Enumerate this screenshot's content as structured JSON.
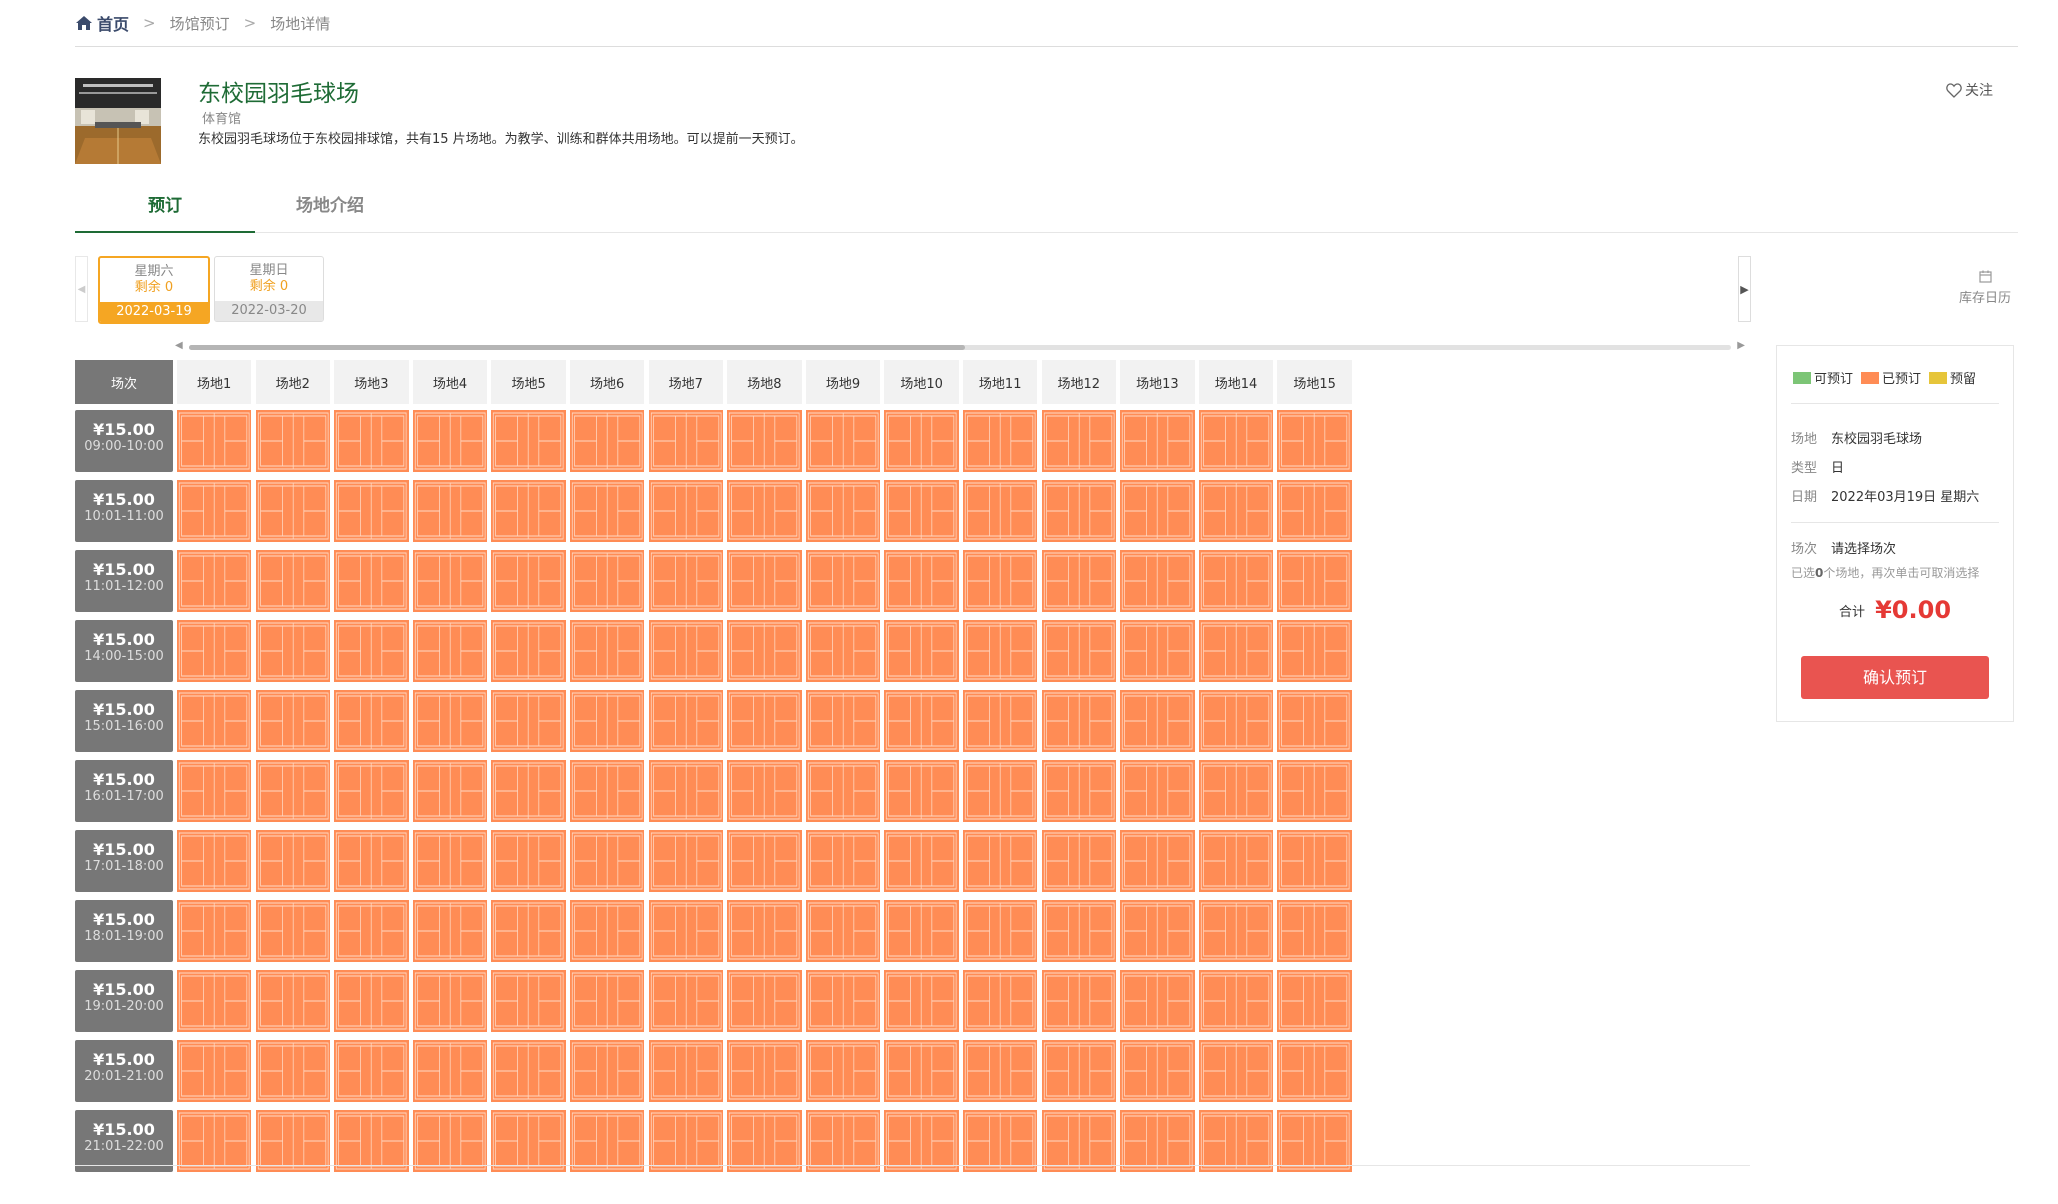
{
  "breadcrumb": {
    "home": "首页",
    "items": [
      "场馆预订",
      "场地详情"
    ]
  },
  "venue": {
    "name": "东校园羽毛球场",
    "category": "体育馆",
    "description": "东校园羽毛球场位于东校园排球馆，共有15 片场地。为教学、训练和群体共用场地。可以提前一天预订。",
    "follow": "关注"
  },
  "tabs": [
    {
      "label": "预订",
      "active": true
    },
    {
      "label": "场地介绍",
      "active": false
    }
  ],
  "dates": [
    {
      "weekday": "星期六",
      "remaining": "剩余 0",
      "date": "2022-03-19",
      "active": true
    },
    {
      "weekday": "星期日",
      "remaining": "剩余 0",
      "date": "2022-03-20",
      "active": false
    }
  ],
  "calendar_label": "库存日历",
  "grid": {
    "corner": "场次",
    "courts": [
      "场地1",
      "场地2",
      "场地3",
      "场地4",
      "场地5",
      "场地6",
      "场地7",
      "场地8",
      "场地9",
      "场地10",
      "场地11",
      "场地12",
      "场地13",
      "场地14",
      "场地15"
    ],
    "slots": [
      {
        "price": "¥15.00",
        "time": "09:00-10:00"
      },
      {
        "price": "¥15.00",
        "time": "10:01-11:00"
      },
      {
        "price": "¥15.00",
        "time": "11:01-12:00"
      },
      {
        "price": "¥15.00",
        "time": "14:00-15:00"
      },
      {
        "price": "¥15.00",
        "time": "15:01-16:00"
      },
      {
        "price": "¥15.00",
        "time": "16:01-17:00"
      },
      {
        "price": "¥15.00",
        "time": "17:01-18:00"
      },
      {
        "price": "¥15.00",
        "time": "18:01-19:00"
      },
      {
        "price": "¥15.00",
        "time": "19:01-20:00"
      },
      {
        "price": "¥15.00",
        "time": "20:01-21:00"
      },
      {
        "price": "¥15.00",
        "time": "21:01-22:00"
      }
    ],
    "status": "booked"
  },
  "legend": [
    {
      "label": "可预订",
      "color": "#7cc576"
    },
    {
      "label": "已预订",
      "color": "#ff8c55"
    },
    {
      "label": "预留",
      "color": "#e6c53a"
    }
  ],
  "summary": {
    "venue_label": "场地",
    "venue_value": "东校园羽毛球场",
    "type_label": "类型",
    "type_value": "日",
    "date_label": "日期",
    "date_value": "2022年03月19日 星期六",
    "session_label": "场次",
    "session_value": "请选择场次",
    "note_prefix": "已选",
    "note_count": "0",
    "note_suffix": "个场地，再次单击可取消选择",
    "total_label": "合计",
    "total_value": "¥0.00",
    "confirm": "确认预订"
  },
  "colors": {
    "accent": "#1e6b35",
    "booked": "#ff8c55",
    "date_active": "#f5a623",
    "confirm": "#e95450",
    "total": "#e53935"
  }
}
